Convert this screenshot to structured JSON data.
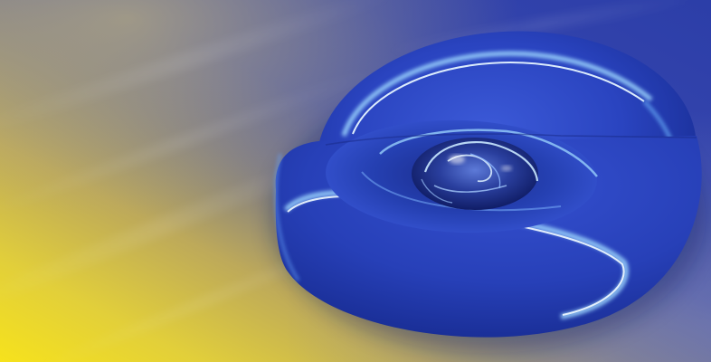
{
  "scene": {
    "subject": "glossy-blue-nested-toroidal-shell",
    "palette": {
      "sky_blue": "#3344aa",
      "deep_blue": "#1f2f8f",
      "gold": "#c9b24a",
      "bright_yellow": "#f3e02a",
      "shell_blue": "#2b46c8",
      "shell_dark": "#142a8a",
      "highlight": "#bfe6ff",
      "rim_glow": "#8fd0ff"
    }
  }
}
